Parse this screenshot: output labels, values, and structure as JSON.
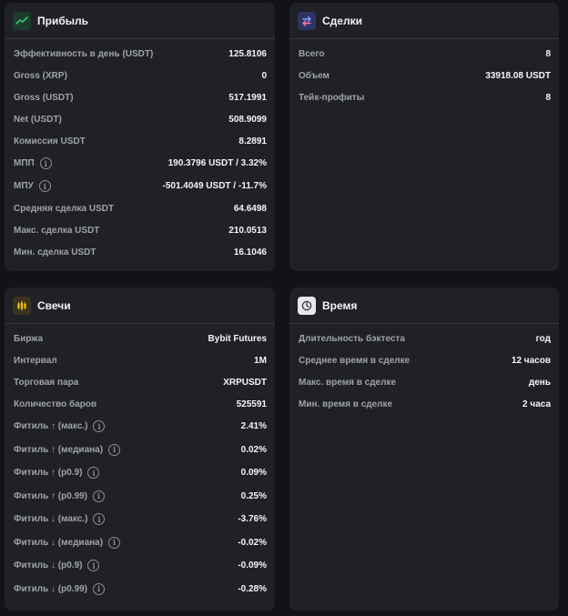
{
  "profit": {
    "title": "Прибыль",
    "icon": "trend-up-icon",
    "rows": [
      {
        "label": "Эффективность в день (USDT)",
        "value": "125.8106"
      },
      {
        "label": "Gross (XRP)",
        "value": "0"
      },
      {
        "label": "Gross (USDT)",
        "value": "517.1991"
      },
      {
        "label": "Net (USDT)",
        "value": "508.9099"
      },
      {
        "label": "Комиссия USDT",
        "value": "8.2891"
      },
      {
        "label": "МПП",
        "value": "190.3796 USDT / 3.32%"
      },
      {
        "label": "МПУ",
        "value": "-501.4049 USDT / -11.7%"
      },
      {
        "label": "Средняя сделка USDT",
        "value": "64.6498"
      },
      {
        "label": "Макс. сделка USDT",
        "value": "210.0513"
      },
      {
        "label": "Мин. сделка USDT",
        "value": "16.1046"
      }
    ]
  },
  "deals": {
    "title": "Сделки",
    "icon": "swap-arrows-icon",
    "rows": [
      {
        "label": "Всего",
        "value": "8"
      },
      {
        "label": "Объем",
        "value": "33918.08 USDT"
      },
      {
        "label": "Тейк-профиты",
        "value": "8"
      }
    ]
  },
  "candles": {
    "title": "Свечи",
    "icon": "candles-icon",
    "rows": [
      {
        "label": "Биржа",
        "value": "Bybit Futures"
      },
      {
        "label": "Интервал",
        "value": "1M"
      },
      {
        "label": "Торговая пара",
        "value": "XRPUSDT"
      },
      {
        "label": "Количество баров",
        "value": "525591"
      },
      {
        "label": "Фитиль ↑ (макс.)",
        "value": "2.41%"
      },
      {
        "label": "Фитиль ↑ (медиана)",
        "value": "0.02%"
      },
      {
        "label": "Фитиль ↑ (p0.9)",
        "value": "0.09%"
      },
      {
        "label": "Фитиль ↑ (p0.99)",
        "value": "0.25%"
      },
      {
        "label": "Фитиль ↓ (макс.)",
        "value": "-3.76%"
      },
      {
        "label": "Фитиль ↓ (медиана)",
        "value": "-0.02%"
      },
      {
        "label": "Фитиль ↓ (p0.9)",
        "value": "-0.09%"
      },
      {
        "label": "Фитиль ↓ (p0.99)",
        "value": "-0.28%"
      }
    ]
  },
  "time": {
    "title": "Время",
    "icon": "clock-icon",
    "rows": [
      {
        "label": "Длительность бэктеста",
        "value": "год"
      },
      {
        "label": "Среднее время в сделке",
        "value": "12 часов"
      },
      {
        "label": "Макс. время в сделке",
        "value": "день"
      },
      {
        "label": "Мин. время в сделке",
        "value": "2 часа"
      }
    ]
  },
  "colors": {
    "background": "#121317",
    "card": "#202126",
    "label": "#9fa2ab",
    "value": "#f4f5f7",
    "profit_icon": "#2ecc71",
    "deals_icon": "#5b7cff",
    "candles_icon": "#f0b90b"
  }
}
